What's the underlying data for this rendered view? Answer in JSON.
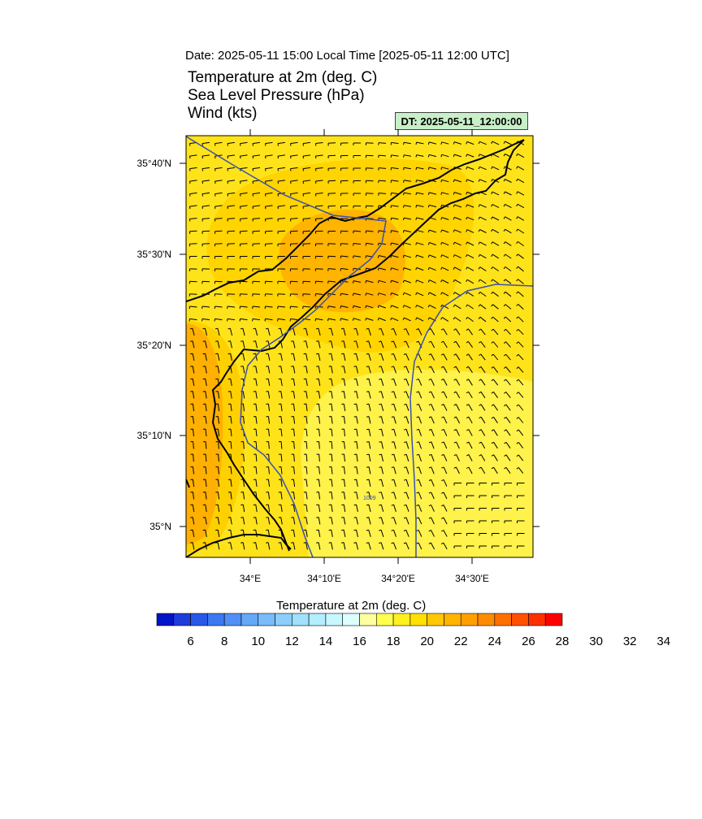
{
  "header": {
    "date_line": "Date: 2025-05-11  15:00 Local Time [2025-05-11  12:00 UTC]",
    "fields": [
      "Temperature at 2m   (deg. C)",
      "Sea Level Pressure   (hPa)",
      "Wind   (kts)"
    ],
    "dt_label": "DT: 2025-05-11_12:00:00",
    "dt_bg_color": "#c8f0c8"
  },
  "map": {
    "lat_labels": [
      "35°40'N",
      "35°30'N",
      "35°20'N",
      "35°10'N",
      "35°N"
    ],
    "lon_labels": [
      "34°E",
      "34°10'E",
      "34°20'E",
      "34°30'E"
    ],
    "isobar_label": "1009",
    "isobar_color": "#3a50b0",
    "coast_color": "#000000"
  },
  "colorbar": {
    "title": "Temperature at 2m  (deg. C)",
    "tick_labels": [
      "6",
      "8",
      "10",
      "12",
      "14",
      "16",
      "18",
      "20",
      "22",
      "24",
      "26",
      "28",
      "30",
      "32",
      "34"
    ],
    "colors": [
      "#0014c8",
      "#1e3cdc",
      "#2858e8",
      "#3c78f0",
      "#5090f4",
      "#64a8f8",
      "#78bcfa",
      "#8ccffc",
      "#a0e0fe",
      "#b4eeff",
      "#c8f8ff",
      "#dcffff",
      "#ffffa0",
      "#ffff50",
      "#fff020",
      "#ffe000",
      "#ffc800",
      "#ffb400",
      "#ffa000",
      "#ff8c00",
      "#ff7000",
      "#ff5000",
      "#ff3000",
      "#ff0000"
    ]
  }
}
